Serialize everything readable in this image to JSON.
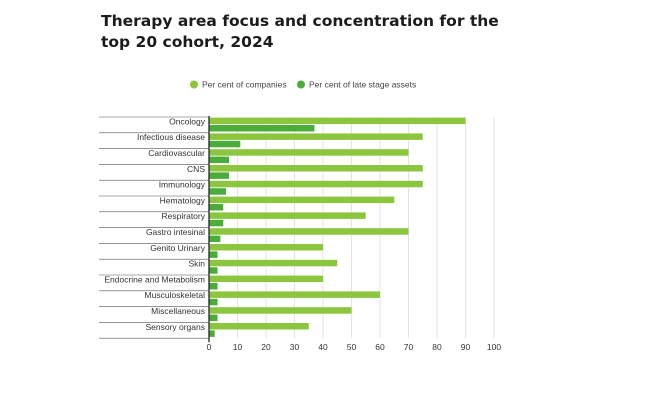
{
  "chart_data": {
    "type": "bar",
    "orientation": "horizontal",
    "title": "Therapy area focus and concentration for the top 20 cohort, 2024",
    "xlabel": "",
    "ylabel": "",
    "xlim": [
      0,
      100
    ],
    "xticks": [
      0,
      10,
      20,
      30,
      40,
      50,
      60,
      70,
      80,
      90,
      100
    ],
    "grid": true,
    "legend_position": "top",
    "categories": [
      "Oncology",
      "Infectious disease",
      "Cardiovascular",
      "CNS",
      "Immunology",
      "Hematology",
      "Respiratory",
      "Gastro intesinal",
      "Genito Urinary",
      "Skin",
      "Endocrine and Metabolism",
      "Musculoskeletal",
      "Miscellaneous",
      "Sensory organs"
    ],
    "series": [
      {
        "name": "Per cent of companies",
        "color": "#8cc63f",
        "values": [
          90,
          75,
          70,
          75,
          75,
          65,
          55,
          70,
          40,
          45,
          40,
          60,
          50,
          35
        ]
      },
      {
        "name": "Per cent of late stage assets",
        "color": "#4aad3a",
        "values": [
          37,
          11,
          7,
          7,
          6,
          5,
          5,
          4,
          3,
          3,
          3,
          3,
          3,
          2
        ]
      }
    ]
  }
}
